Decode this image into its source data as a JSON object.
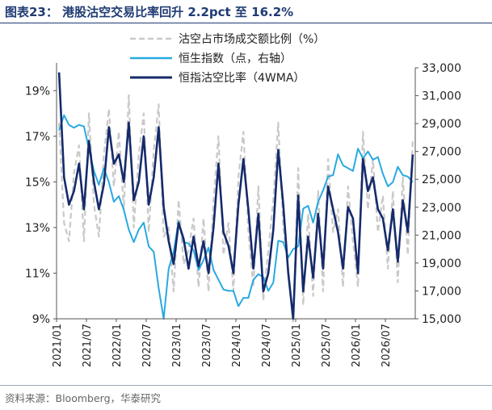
{
  "title": "图表23：  港股沽空交易比率回升 2.2pct 至 16.2%",
  "source": "资料来源：Bloomberg，华泰研究",
  "chart_data": {
    "type": "line",
    "legend": [
      "沽空占市场成交额比例（%）",
      "恒生指数（点，右轴）",
      "恒指沽空比率（4WMA）"
    ],
    "legend_placement": "top-center",
    "colors": {
      "short_ratio": "#c9c9c9",
      "hsi": "#29a9e1",
      "wma": "#152a6b"
    },
    "left_axis": {
      "ticks": [
        "9%",
        "11%",
        "13%",
        "15%",
        "17%",
        "19%"
      ],
      "range": [
        9,
        20
      ]
    },
    "right_axis": {
      "ticks": [
        "15,000",
        "17,000",
        "19,000",
        "21,000",
        "23,000",
        "25,000",
        "27,000",
        "29,000",
        "31,000",
        "33,000"
      ],
      "range": [
        15000,
        33000
      ]
    },
    "x_labels": [
      "2021/01",
      "2021/07",
      "2022/01",
      "2022/07",
      "2023/01",
      "2023/07",
      "2024/01",
      "2024/07",
      "2025/01",
      "2025/07",
      "2026/01",
      "2026/07"
    ],
    "x_range": [
      "2021-01",
      "2026-12"
    ],
    "grid": false,
    "series": [
      {
        "name": "恒生指数（点，右轴）",
        "axis": "right",
        "x": [
          "2021-01",
          "2021-02",
          "2021-03",
          "2021-04",
          "2021-05",
          "2021-06",
          "2021-07",
          "2021-08",
          "2021-09",
          "2021-10",
          "2021-11",
          "2021-12",
          "2022-01",
          "2022-02",
          "2022-03",
          "2022-04",
          "2022-05",
          "2022-06",
          "2022-07",
          "2022-08",
          "2022-09",
          "2022-10",
          "2022-11",
          "2022-12",
          "2023-01",
          "2023-02",
          "2023-03",
          "2023-04",
          "2023-05",
          "2023-06",
          "2023-07",
          "2023-08",
          "2023-09",
          "2023-10",
          "2023-11",
          "2023-12",
          "2024-01",
          "2024-02",
          "2024-03",
          "2024-04",
          "2024-05",
          "2024-06",
          "2024-07",
          "2024-08",
          "2024-09",
          "2024-10",
          "2024-11",
          "2024-12",
          "2025-01",
          "2025-02",
          "2025-03",
          "2025-04",
          "2025-05",
          "2025-06",
          "2025-07",
          "2025-08",
          "2025-09",
          "2025-10",
          "2025-11",
          "2025-12",
          "2026-01",
          "2026-02",
          "2026-03",
          "2026-04",
          "2026-05",
          "2026-06",
          "2026-07",
          "2026-08",
          "2026-09",
          "2026-10",
          "2026-11",
          "2026-12"
        ],
        "values": [
          28500,
          29600,
          28900,
          28700,
          28900,
          28800,
          27200,
          25600,
          24600,
          25800,
          24800,
          23400,
          23800,
          22800,
          21400,
          20500,
          21400,
          21900,
          20200,
          19800,
          17200,
          15000,
          18600,
          19800,
          22000,
          20500,
          20400,
          19900,
          18500,
          19200,
          20100,
          18500,
          17800,
          17100,
          17000,
          17000,
          15900,
          16500,
          16500,
          17800,
          18200,
          18000,
          17000,
          17600,
          20600,
          20500,
          19400,
          20000,
          20200,
          22900,
          23100,
          21900,
          23400,
          24200,
          25200,
          25300,
          26800,
          26000,
          25800,
          25600,
          27200,
          26500,
          27000,
          26400,
          26600,
          25400,
          24500,
          24800,
          25900,
          25300,
          25200,
          24800
        ]
      },
      {
        "name": "恒指沽空比率（4WMA）",
        "axis": "left",
        "x": [
          "2021-01",
          "2021-02",
          "2021-03",
          "2021-04",
          "2021-05",
          "2021-06",
          "2021-07",
          "2021-08",
          "2021-09",
          "2021-10",
          "2021-11",
          "2021-12",
          "2022-01",
          "2022-02",
          "2022-03",
          "2022-04",
          "2022-05",
          "2022-06",
          "2022-07",
          "2022-08",
          "2022-09",
          "2022-10",
          "2022-11",
          "2022-12",
          "2023-01",
          "2023-02",
          "2023-03",
          "2023-04",
          "2023-05",
          "2023-06",
          "2023-07",
          "2023-08",
          "2023-09",
          "2023-10",
          "2023-11",
          "2023-12",
          "2024-01",
          "2024-02",
          "2024-03",
          "2024-04",
          "2024-05",
          "2024-06",
          "2024-07",
          "2024-08",
          "2024-09",
          "2024-10",
          "2024-11",
          "2024-12",
          "2025-01",
          "2025-02",
          "2025-03",
          "2025-04",
          "2025-05",
          "2025-06",
          "2025-07",
          "2025-08",
          "2025-09",
          "2025-10",
          "2025-11",
          "2025-12",
          "2026-01",
          "2026-02",
          "2026-03",
          "2026-04",
          "2026-05",
          "2026-06",
          "2026-07",
          "2026-08",
          "2026-09",
          "2026-10",
          "2026-11",
          "2026-12"
        ],
        "values": [
          19.8,
          15.2,
          14.0,
          14.6,
          15.8,
          13.8,
          16.8,
          15.0,
          13.8,
          14.9,
          17.4,
          15.8,
          16.2,
          15.0,
          17.6,
          14.2,
          15.0,
          17.0,
          14.0,
          15.2,
          17.4,
          13.9,
          12.4,
          11.4,
          13.2,
          12.5,
          11.2,
          12.6,
          11.3,
          12.4,
          11.0,
          13.0,
          15.8,
          12.8,
          12.2,
          11.0,
          14.0,
          16.0,
          13.8,
          11.2,
          13.6,
          10.2,
          11.0,
          12.9,
          16.4,
          14.0,
          11.0,
          9.0,
          14.4,
          10.2,
          12.6,
          10.8,
          13.6,
          11.2,
          14.8,
          13.8,
          12.8,
          11.2,
          13.9,
          13.4,
          11.0,
          16.0,
          14.6,
          15.2,
          13.8,
          13.4,
          12.0,
          13.8,
          11.5,
          14.2,
          12.8,
          16.2
        ]
      },
      {
        "name": "沽空占市场成交额比例（%）",
        "axis": "left",
        "x": [
          "2021-01",
          "2021-02",
          "2021-03",
          "2021-04",
          "2021-05",
          "2021-06",
          "2021-07",
          "2021-08",
          "2021-09",
          "2021-10",
          "2021-11",
          "2021-12",
          "2022-01",
          "2022-02",
          "2022-03",
          "2022-04",
          "2022-05",
          "2022-06",
          "2022-07",
          "2022-08",
          "2022-09",
          "2022-10",
          "2022-11",
          "2022-12",
          "2023-01",
          "2023-02",
          "2023-03",
          "2023-04",
          "2023-05",
          "2023-06",
          "2023-07",
          "2023-08",
          "2023-09",
          "2023-10",
          "2023-11",
          "2023-12",
          "2024-01",
          "2024-02",
          "2024-03",
          "2024-04",
          "2024-05",
          "2024-06",
          "2024-07",
          "2024-08",
          "2024-09",
          "2024-10",
          "2024-11",
          "2024-12",
          "2025-01",
          "2025-02",
          "2025-03",
          "2025-04",
          "2025-05",
          "2025-06",
          "2025-07",
          "2025-08",
          "2025-09",
          "2025-10",
          "2025-11",
          "2025-12",
          "2026-01",
          "2026-02",
          "2026-03",
          "2026-04",
          "2026-05",
          "2026-06",
          "2026-07",
          "2026-08",
          "2026-09",
          "2026-10",
          "2026-11",
          "2026-12"
        ],
        "values": [
          17.6,
          13.2,
          12.4,
          15.4,
          16.6,
          12.4,
          18.0,
          14.0,
          12.6,
          16.2,
          18.2,
          14.8,
          17.2,
          13.8,
          18.8,
          13.0,
          16.2,
          18.0,
          12.8,
          16.4,
          18.4,
          12.6,
          13.0,
          10.2,
          14.2,
          11.4,
          12.0,
          13.4,
          10.4,
          13.4,
          10.2,
          14.2,
          17.0,
          11.8,
          13.2,
          10.2,
          15.2,
          17.2,
          12.8,
          10.4,
          14.8,
          9.8,
          12.0,
          14.2,
          17.6,
          13.0,
          11.2,
          8.8,
          15.6,
          9.6,
          13.6,
          10.0,
          14.6,
          10.2,
          16.0,
          12.8,
          13.8,
          10.4,
          14.8,
          12.4,
          10.4,
          17.2,
          13.8,
          16.0,
          12.8,
          14.4,
          11.2,
          14.6,
          10.6,
          15.2,
          11.8,
          16.8
        ]
      }
    ]
  }
}
